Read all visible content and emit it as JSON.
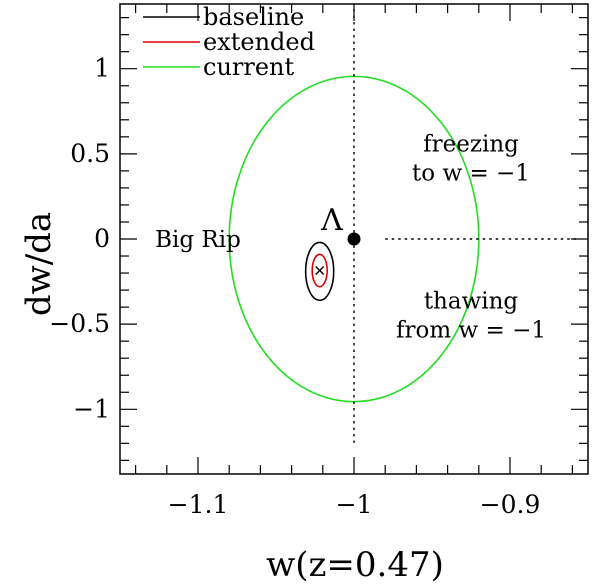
{
  "chart_data": {
    "type": "scatter",
    "title": "",
    "xlabel": "w(z=0.47)",
    "ylabel": "dw/da",
    "xlim": [
      -1.15,
      -0.85
    ],
    "ylim": [
      -1.38,
      1.38
    ],
    "x_ticks": [
      {
        "value": -1.1,
        "label": "−1.1"
      },
      {
        "value": -1.0,
        "label": "−1"
      },
      {
        "value": -0.9,
        "label": "−0.9"
      }
    ],
    "y_ticks": [
      {
        "value": 1.0,
        "label": "1"
      },
      {
        "value": 0.5,
        "label": "0.5"
      },
      {
        "value": 0.0,
        "label": "0"
      },
      {
        "value": -0.5,
        "label": "−0.5"
      },
      {
        "value": -1.0,
        "label": "−1"
      }
    ],
    "x_minor_step": 0.02,
    "y_minor_step": 0.1,
    "grid": false,
    "legend_position": "top-left",
    "series": [
      {
        "name": "baseline",
        "color": "#000000",
        "type": "ellipse",
        "center": [
          -1.022,
          -0.19
        ],
        "half_width_x": 0.009,
        "half_width_y": 0.17
      },
      {
        "name": "extended",
        "color": "#dd0000",
        "type": "ellipse",
        "center": [
          -1.022,
          -0.185
        ],
        "half_width_x": 0.0048,
        "half_width_y": 0.095
      },
      {
        "name": "current",
        "color": "#22dd22",
        "type": "ellipse",
        "center": [
          -1.0,
          0.0
        ],
        "half_width_x": 0.08,
        "half_width_y": 0.955
      }
    ],
    "fiducial_point": {
      "x": -1.022,
      "y": -0.185,
      "marker": "×"
    },
    "lambda_point": {
      "x": -1.0,
      "y": 0.0,
      "label": "Λ"
    },
    "divider_lines": [
      {
        "from": [
          -1.0,
          0.0
        ],
        "to": [
          -1.0,
          1.38
        ],
        "style": "dotted"
      },
      {
        "from": [
          -1.0,
          0.0
        ],
        "to": [
          -1.0,
          -1.2
        ],
        "style": "dotted"
      },
      {
        "from": [
          -0.98,
          0.0
        ],
        "to": [
          -0.855,
          0.0
        ],
        "style": "dotted"
      }
    ],
    "annotations": [
      {
        "text": "freezing",
        "x": -0.925,
        "y": 0.56
      },
      {
        "text": "to w = −1",
        "x": -0.925,
        "y": 0.39
      },
      {
        "text": "Big Rip",
        "x": -1.1,
        "y": 0.0
      },
      {
        "text": "thawing",
        "x": -0.925,
        "y": -0.36
      },
      {
        "text": "from w = −1",
        "x": -0.925,
        "y": -0.53
      }
    ]
  }
}
